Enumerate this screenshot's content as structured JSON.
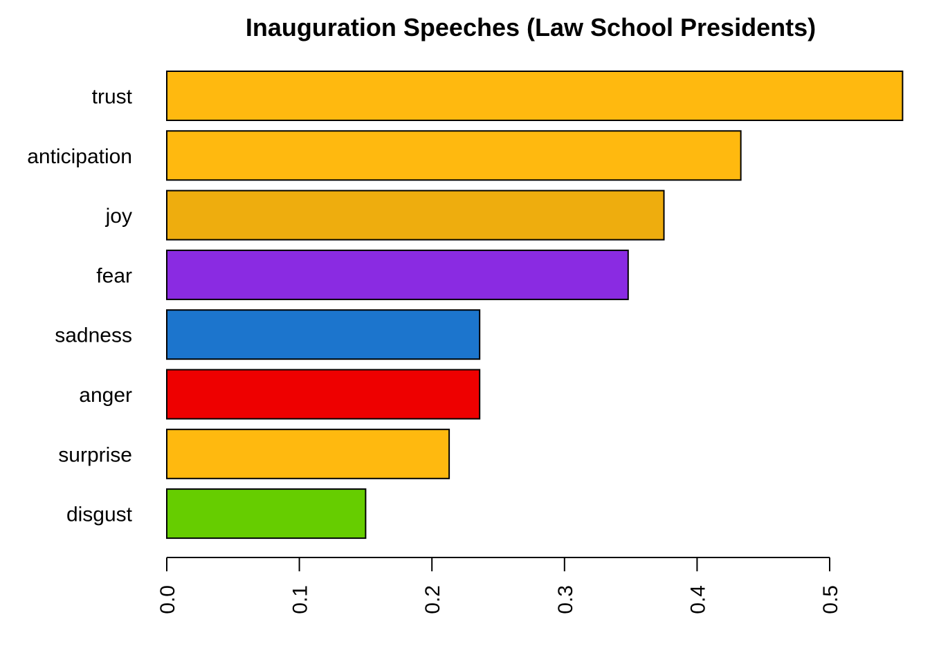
{
  "chart_data": {
    "type": "bar",
    "orientation": "horizontal",
    "title": "Inauguration Speeches (Law School Presidents)",
    "xlabel": "",
    "ylabel": "",
    "categories": [
      "trust",
      "anticipation",
      "joy",
      "fear",
      "sadness",
      "anger",
      "surprise",
      "disgust"
    ],
    "values": [
      0.555,
      0.433,
      0.375,
      0.348,
      0.236,
      0.236,
      0.213,
      0.15
    ],
    "colors": [
      "#FFB90F",
      "#FFB90F",
      "#EEAD0E",
      "#8A2BE2",
      "#1C75CD",
      "#EE0000",
      "#FFB90F",
      "#66CD00"
    ],
    "xticks": [
      "0.0",
      "0.1",
      "0.2",
      "0.3",
      "0.4",
      "0.5"
    ],
    "xlim": [
      0,
      0.555
    ],
    "tick_label_rotation": "vertical",
    "grid": false,
    "legend": false
  }
}
